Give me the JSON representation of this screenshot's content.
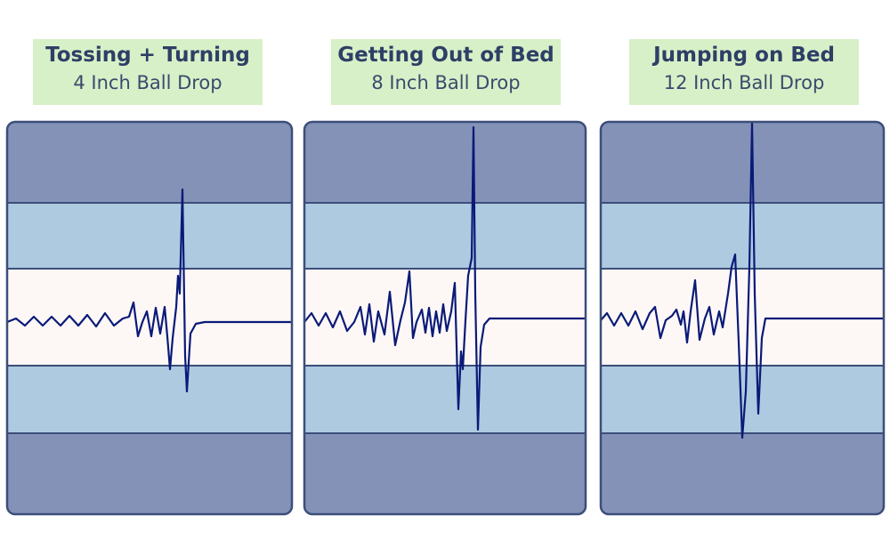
{
  "panels": [
    {
      "title": "Tossing + Turning",
      "subtitle": "4 Inch Ball Drop"
    },
    {
      "title": "Getting Out of Bed",
      "subtitle": "8 Inch Ball Drop"
    },
    {
      "title": "Jumping on Bed",
      "subtitle": "12 Inch Ball Drop"
    }
  ]
}
